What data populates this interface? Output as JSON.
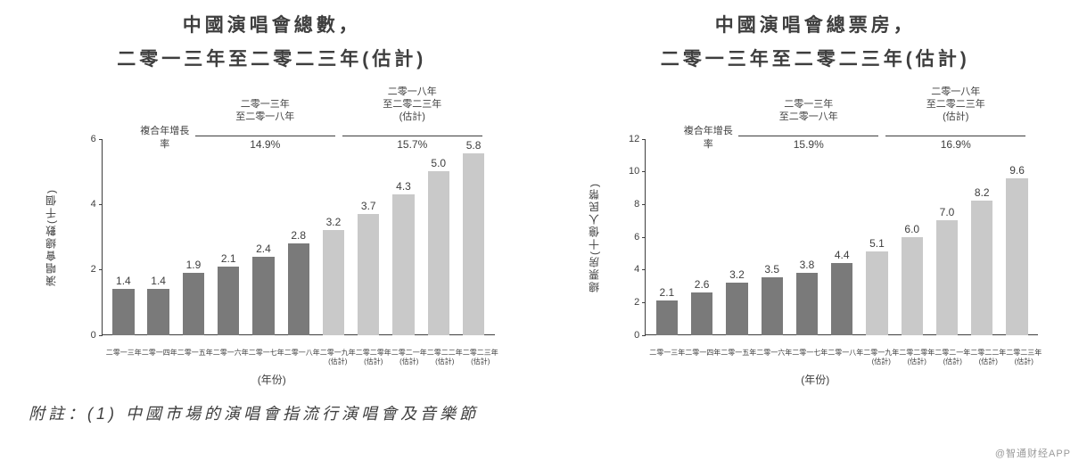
{
  "colors": {
    "bar_actual": "#7a7a7a",
    "bar_estimate": "#c9c9c9",
    "axis": "#3e3e3e",
    "text": "#3e3e3e",
    "background": "#ffffff",
    "watermark": "#9a9a9a"
  },
  "chart_left": {
    "title_line1": "中國演唱會總數，",
    "title_line2": "二零一三年至二零二三年(估計)",
    "type": "bar",
    "y_label": "演唱會總數(千個)",
    "x_axis_title": "(年份)",
    "ylim": [
      0,
      6
    ],
    "ytick_step": 2,
    "yticks": [
      0,
      2,
      4,
      6
    ],
    "cagr": {
      "label": "複合年增長率",
      "period1_label": "二零一三年\n至二零一八年",
      "period1_value": "14.9%",
      "period2_label": "二零一八年\n至二零二三年\n(估計)",
      "period2_value": "15.7%"
    },
    "categories": [
      {
        "label": "二零一三年",
        "sub": "",
        "value": 1.4,
        "estimate": false
      },
      {
        "label": "二零一四年",
        "sub": "",
        "value": 1.4,
        "estimate": false
      },
      {
        "label": "二零一五年",
        "sub": "",
        "value": 1.9,
        "estimate": false
      },
      {
        "label": "二零一六年",
        "sub": "",
        "value": 2.1,
        "estimate": false
      },
      {
        "label": "二零一七年",
        "sub": "",
        "value": 2.4,
        "estimate": false
      },
      {
        "label": "二零一八年",
        "sub": "",
        "value": 2.8,
        "estimate": false
      },
      {
        "label": "二零一九年",
        "sub": "(估計)",
        "value": 3.2,
        "estimate": true
      },
      {
        "label": "二零二零年",
        "sub": "(估計)",
        "value": 3.7,
        "estimate": true
      },
      {
        "label": "二零二一年",
        "sub": "(估計)",
        "value": 4.3,
        "estimate": true
      },
      {
        "label": "二零二二年",
        "sub": "(估計)",
        "value": 5.0,
        "estimate": true
      },
      {
        "label": "二零二三年",
        "sub": "(估計)",
        "value": 5.8,
        "estimate": true
      }
    ]
  },
  "chart_right": {
    "title_line1": "中國演唱會總票房，",
    "title_line2": "二零一三年至二零二三年(估計)",
    "type": "bar",
    "y_label": "總票房(十億人民幣)",
    "x_axis_title": "(年份)",
    "ylim": [
      0,
      12
    ],
    "ytick_step": 2,
    "yticks": [
      0,
      2,
      4,
      6,
      8,
      10,
      12
    ],
    "cagr": {
      "label": "複合年增長率",
      "period1_label": "二零一三年\n至二零一八年",
      "period1_value": "15.9%",
      "period2_label": "二零一八年\n至二零二三年\n(估計)",
      "period2_value": "16.9%"
    },
    "categories": [
      {
        "label": "二零一三年",
        "sub": "",
        "value": 2.1,
        "estimate": false
      },
      {
        "label": "二零一四年",
        "sub": "",
        "value": 2.6,
        "estimate": false
      },
      {
        "label": "二零一五年",
        "sub": "",
        "value": 3.2,
        "estimate": false
      },
      {
        "label": "二零一六年",
        "sub": "",
        "value": 3.5,
        "estimate": false
      },
      {
        "label": "二零一七年",
        "sub": "",
        "value": 3.8,
        "estimate": false
      },
      {
        "label": "二零一八年",
        "sub": "",
        "value": 4.4,
        "estimate": false
      },
      {
        "label": "二零一九年",
        "sub": "(估計)",
        "value": 5.1,
        "estimate": true
      },
      {
        "label": "二零二零年",
        "sub": "(估計)",
        "value": 6.0,
        "estimate": true
      },
      {
        "label": "二零二一年",
        "sub": "(估計)",
        "value": 7.0,
        "estimate": true
      },
      {
        "label": "二零二二年",
        "sub": "(估計)",
        "value": 8.2,
        "estimate": true
      },
      {
        "label": "二零二三年",
        "sub": "(估計)",
        "value": 9.6,
        "estimate": true
      }
    ]
  },
  "footnote": "附註：(1) 中國市場的演唱會指流行演唱會及音樂節",
  "watermark": "@智通财经APP"
}
